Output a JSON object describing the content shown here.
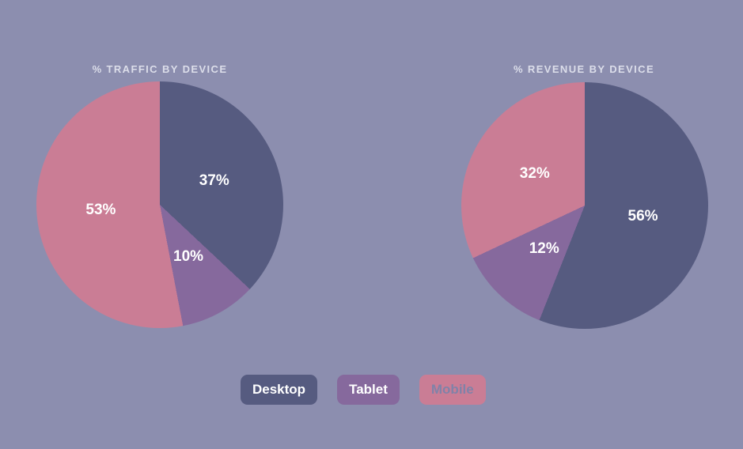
{
  "page": {
    "background_color": "#8c8eaf",
    "title_color": "#dcdeea"
  },
  "chart_data": [
    {
      "type": "pie",
      "title": "% TRAFFIC BY DEVICE",
      "categories": [
        "Desktop",
        "Tablet",
        "Mobile"
      ],
      "values": [
        37,
        10,
        53
      ],
      "slice_labels": [
        "37%",
        "10%",
        "53%"
      ],
      "colors": [
        "#565b80",
        "#86699d",
        "#ca7d95"
      ],
      "start_angle_deg": 0,
      "direction": "clockwise",
      "slice_label_color": "#ffffff",
      "label_radius_fraction": 0.48
    },
    {
      "type": "pie",
      "title": "% REVENUE BY DEVICE",
      "categories": [
        "Desktop",
        "Tablet",
        "Mobile"
      ],
      "values": [
        56,
        12,
        32
      ],
      "slice_labels": [
        "56%",
        "12%",
        "32%"
      ],
      "colors": [
        "#565b80",
        "#86699d",
        "#ca7d95"
      ],
      "start_angle_deg": 0,
      "direction": "clockwise",
      "slice_label_color": "#ffffff",
      "label_radius_fraction": 0.48
    }
  ],
  "legend": {
    "items": [
      {
        "label": "Desktop",
        "bg": "#565b80",
        "text_color": "#ffffff"
      },
      {
        "label": "Tablet",
        "bg": "#86699d",
        "text_color": "#ffffff"
      },
      {
        "label": "Mobile",
        "bg": "#ca7d95",
        "text_color": "#8082a8"
      }
    ]
  }
}
